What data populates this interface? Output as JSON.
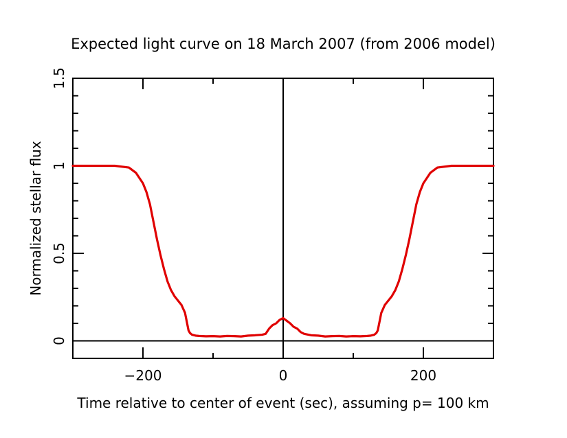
{
  "chart_data": {
    "type": "line",
    "title": "Expected light curve on 18 March 2007 (from 2006 model)",
    "xlabel": "Time relative to center of event (sec), assuming p= 100 km",
    "ylabel": "Normalized stellar flux",
    "xlim": [
      -300,
      300
    ],
    "ylim": [
      -0.1,
      1.5
    ],
    "x_ticks": [
      -200,
      0,
      200
    ],
    "x_tick_labels": [
      "−200",
      "0",
      "200"
    ],
    "y_ticks": [
      0,
      0.5,
      1,
      1.5
    ],
    "y_tick_labels": [
      "0",
      "0.5",
      "1",
      "1.5"
    ],
    "x_minor_step": 100,
    "y_minor_step": 0.1,
    "reference_lines": {
      "horizontal_at_y": 0,
      "vertical_at_x": 0
    },
    "grid": false,
    "series": [
      {
        "color": "#e00000",
        "x": [
          -300,
          -240,
          -220,
          -210,
          -200,
          -195,
          -190,
          -185,
          -180,
          -175,
          -170,
          -165,
          -160,
          -155,
          -150,
          -145,
          -140,
          -137,
          -135,
          -133,
          -130,
          -125,
          -120,
          -110,
          -100,
          -90,
          -80,
          -70,
          -60,
          -50,
          -40,
          -30,
          -25,
          -20,
          -15,
          -10,
          -5,
          0,
          5,
          10,
          15,
          20,
          25,
          30,
          40,
          50,
          60,
          70,
          80,
          90,
          100,
          110,
          120,
          125,
          130,
          133,
          135,
          137,
          140,
          145,
          150,
          155,
          160,
          165,
          170,
          175,
          180,
          185,
          190,
          195,
          200,
          210,
          220,
          240,
          300
        ],
        "y": [
          1.0,
          1.0,
          0.99,
          0.96,
          0.9,
          0.85,
          0.78,
          0.68,
          0.58,
          0.49,
          0.41,
          0.34,
          0.29,
          0.255,
          0.23,
          0.205,
          0.16,
          0.1,
          0.06,
          0.045,
          0.035,
          0.03,
          0.028,
          0.026,
          0.027,
          0.025,
          0.028,
          0.027,
          0.025,
          0.03,
          0.032,
          0.035,
          0.04,
          0.07,
          0.09,
          0.1,
          0.12,
          0.13,
          0.115,
          0.1,
          0.08,
          0.07,
          0.05,
          0.04,
          0.032,
          0.03,
          0.025,
          0.027,
          0.028,
          0.025,
          0.027,
          0.026,
          0.028,
          0.03,
          0.035,
          0.045,
          0.06,
          0.1,
          0.16,
          0.205,
          0.23,
          0.255,
          0.29,
          0.34,
          0.41,
          0.49,
          0.58,
          0.68,
          0.78,
          0.85,
          0.9,
          0.96,
          0.99,
          1.0,
          1.0
        ]
      }
    ]
  }
}
